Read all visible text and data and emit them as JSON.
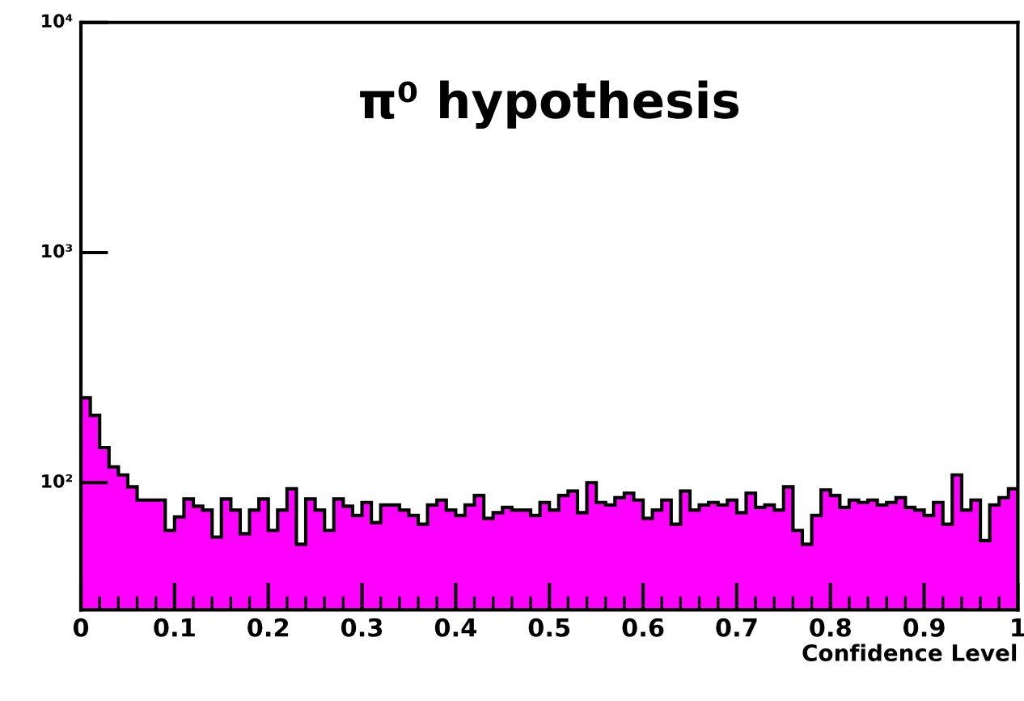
{
  "chart_data": {
    "type": "histogram",
    "title": "π⁰ hypothesis",
    "xlabel": "Confidence Level",
    "bins": [
      0,
      0.01,
      0.02,
      0.03,
      0.04,
      0.05,
      0.06,
      0.07,
      0.08,
      0.09,
      0.1,
      0.11,
      0.12,
      0.13,
      0.14,
      0.15,
      0.16,
      0.17,
      0.18,
      0.19,
      0.2,
      0.21,
      0.22,
      0.23,
      0.24,
      0.25,
      0.26,
      0.27,
      0.28,
      0.29,
      0.3,
      0.31,
      0.32,
      0.33,
      0.34,
      0.35,
      0.36,
      0.37,
      0.38,
      0.39,
      0.4,
      0.41,
      0.42,
      0.43,
      0.44,
      0.45,
      0.46,
      0.47,
      0.48,
      0.49,
      0.5,
      0.51,
      0.52,
      0.53,
      0.54,
      0.55,
      0.56,
      0.57,
      0.58,
      0.59,
      0.6,
      0.61,
      0.62,
      0.63,
      0.64,
      0.65,
      0.66,
      0.67,
      0.68,
      0.69,
      0.7,
      0.71,
      0.72,
      0.73,
      0.74,
      0.75,
      0.76,
      0.77,
      0.78,
      0.79,
      0.8,
      0.81,
      0.82,
      0.83,
      0.84,
      0.85,
      0.86,
      0.87,
      0.88,
      0.89,
      0.9,
      0.91,
      0.92,
      0.93,
      0.94,
      0.95,
      0.96,
      0.97,
      0.98,
      0.99,
      1
    ],
    "values": [
      234,
      196,
      142,
      117,
      108,
      96,
      84,
      84,
      84,
      62,
      71,
      85,
      79,
      76,
      58,
      85,
      76,
      60,
      76,
      85,
      62,
      76,
      94,
      54,
      85,
      76,
      62,
      85,
      79,
      72,
      82,
      67,
      80,
      80,
      76,
      72,
      66,
      80,
      84,
      76,
      72,
      80,
      88,
      70,
      74,
      78,
      76,
      76,
      72,
      82,
      76,
      88,
      92,
      74,
      100,
      82,
      80,
      86,
      90,
      84,
      70,
      76,
      84,
      66,
      92,
      76,
      80,
      82,
      80,
      84,
      74,
      90,
      78,
      80,
      76,
      96,
      62,
      54,
      72,
      93,
      88,
      78,
      84,
      82,
      84,
      80,
      82,
      86,
      78,
      76,
      72,
      82,
      66,
      108,
      76,
      84,
      56,
      80,
      86,
      94
    ],
    "color": "#ff00ff",
    "log": "y",
    "grid": false,
    "xlim": [
      0,
      1
    ],
    "xticks": [
      0,
      0.1,
      0.2,
      0.3,
      0.4,
      0.5,
      0.6,
      0.7,
      0.8,
      0.9,
      1
    ],
    "ylim": [
      28,
      10000
    ],
    "yticks": [
      {
        "value": 100,
        "label": "10²"
      },
      {
        "value": 1000,
        "label": "10³"
      },
      {
        "value": 10000,
        "label": "10⁴"
      }
    ]
  }
}
